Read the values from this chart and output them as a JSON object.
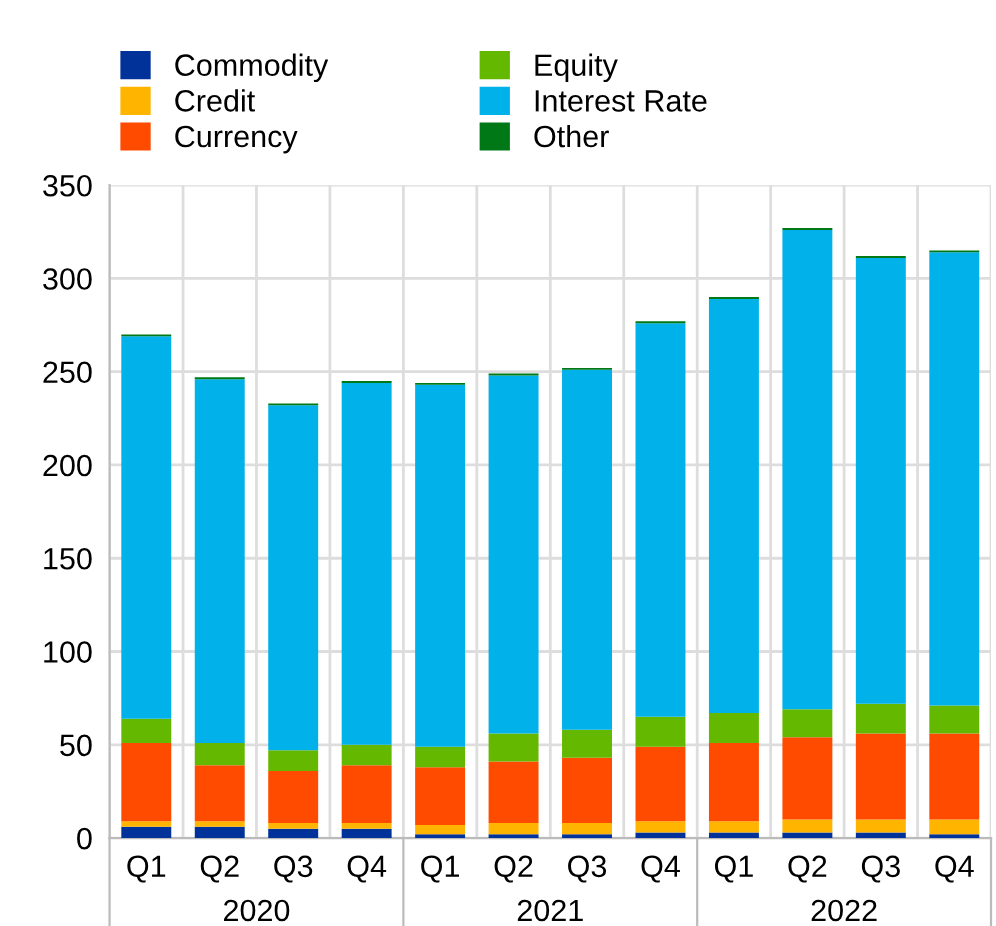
{
  "chart_data": {
    "type": "bar",
    "stacked": true,
    "categories": [
      "Q1",
      "Q2",
      "Q3",
      "Q4",
      "Q1",
      "Q2",
      "Q3",
      "Q4",
      "Q1",
      "Q2",
      "Q3",
      "Q4"
    ],
    "series": [
      {
        "name": "Commodity",
        "color": "#003299",
        "values": [
          6,
          6,
          5,
          5,
          2,
          2,
          2,
          3,
          3,
          3,
          3,
          2
        ]
      },
      {
        "name": "Credit",
        "color": "#ffb400",
        "values": [
          3,
          3,
          3,
          3,
          5,
          6,
          6,
          6,
          6,
          7,
          7,
          8
        ]
      },
      {
        "name": "Currency",
        "color": "#ff4b00",
        "values": [
          42,
          30,
          28,
          31,
          31,
          33,
          35,
          40,
          42,
          44,
          46,
          46
        ]
      },
      {
        "name": "Equity",
        "color": "#65b800",
        "values": [
          13,
          12,
          11,
          11,
          11,
          15,
          15,
          16,
          16,
          15,
          16,
          15
        ]
      },
      {
        "name": "Interest Rate",
        "color": "#00b1ea",
        "values": [
          205,
          195,
          185,
          194,
          194,
          192,
          193,
          211,
          222,
          257,
          239,
          243
        ]
      },
      {
        "name": "Other",
        "color": "#007816",
        "values": [
          1,
          1,
          1,
          1,
          1,
          1,
          1,
          1,
          1,
          1,
          1,
          1
        ]
      }
    ],
    "ylim": [
      0,
      350
    ],
    "yticks": [
      0,
      50,
      100,
      150,
      200,
      250,
      300,
      350
    ],
    "grid": true,
    "legend": "top left",
    "annotations": [
      "2020",
      "2021",
      "2022"
    ]
  }
}
